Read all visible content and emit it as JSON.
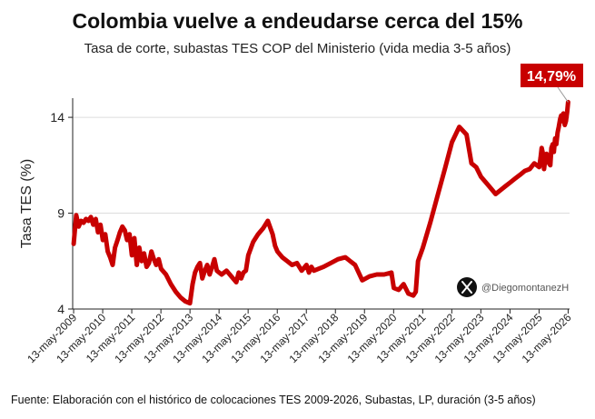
{
  "chart_data": {
    "type": "line",
    "title": "Colombia vuelve a endeudarse cerca del 15%",
    "subtitle": "Tasa de corte, subastas TES COP del Ministerio (vida media 3-5 años)",
    "ylabel": "Tasa TES (%)",
    "xlabel": "",
    "ylim": [
      4,
      15
    ],
    "yticks": [
      4,
      9,
      14
    ],
    "xlim": [
      "2009-05-01",
      "2026-05-31"
    ],
    "xtick_labels": [
      "13-may-2009",
      "13-may-2010",
      "13-may-2011",
      "13-may-2012",
      "13-may-2013",
      "13-may-2014",
      "13-may-2015",
      "13-may-2016",
      "13-may-2017",
      "13-may-2018",
      "13-may-2019",
      "13-may-2020",
      "13-may-2021",
      "13-may-2022",
      "13-may-2023",
      "13-may-2024",
      "13-may-2025",
      "13-may-2026"
    ],
    "grid": "horizontal",
    "line_color": "#c80000",
    "last_value_label": "14,79%",
    "watermark_handle": "@DiegomontanezH",
    "series": [
      {
        "x": [
          "2009-05-13",
          "2009-06-15",
          "2009-07-15",
          "2009-08-15",
          "2009-09-15",
          "2009-10-15",
          "2009-11-15",
          "2009-12-15",
          "2010-01-15",
          "2010-02-15",
          "2010-03-15",
          "2010-04-15",
          "2010-05-15",
          "2010-06-15",
          "2010-07-15",
          "2010-08-15",
          "2010-09-15",
          "2010-10-15",
          "2010-11-15",
          "2010-12-15",
          "2011-01-15",
          "2011-02-15",
          "2011-03-15",
          "2011-04-15",
          "2011-05-15",
          "2011-06-15",
          "2011-07-15",
          "2011-08-15",
          "2011-09-15",
          "2011-10-15",
          "2011-11-15",
          "2011-12-15",
          "2012-01-15",
          "2012-02-15",
          "2012-03-15",
          "2012-04-15",
          "2012-05-15",
          "2012-07-15",
          "2012-09-15",
          "2012-11-15",
          "2013-01-15",
          "2013-03-15",
          "2013-05-13",
          "2013-06-15",
          "2013-07-15",
          "2013-08-15",
          "2013-09-15",
          "2013-10-15",
          "2013-11-15",
          "2013-12-15",
          "2014-01-15",
          "2014-02-15",
          "2014-03-15",
          "2014-04-15",
          "2014-05-15",
          "2014-06-15",
          "2014-07-15",
          "2014-08-15",
          "2014-10-15",
          "2014-12-15",
          "2015-01-15",
          "2015-02-15",
          "2015-03-15",
          "2015-04-15",
          "2015-05-15",
          "2015-07-15",
          "2015-09-15",
          "2015-11-15",
          "2016-01-15",
          "2016-03-15",
          "2016-04-15",
          "2016-05-15",
          "2016-07-15",
          "2016-09-15",
          "2016-11-15",
          "2017-01-15",
          "2017-03-15",
          "2017-05-15",
          "2017-06-15",
          "2017-07-15",
          "2017-08-15",
          "2017-10-15",
          "2017-12-15",
          "2018-03-15",
          "2018-06-15",
          "2018-09-15",
          "2018-11-15",
          "2019-01-15",
          "2019-04-15",
          "2019-07-15",
          "2019-10-15",
          "2020-01-15",
          "2020-04-15",
          "2020-05-15",
          "2020-07-15",
          "2020-09-15",
          "2020-11-15",
          "2021-01-15",
          "2021-02-15",
          "2021-03-15",
          "2021-05-15",
          "2021-08-15",
          "2021-11-15",
          "2022-02-15",
          "2022-05-15",
          "2022-08-15",
          "2022-11-15",
          "2023-01-15",
          "2023-03-15",
          "2023-05-15",
          "2023-07-15",
          "2023-09-15",
          "2023-11-15",
          "2024-01-15",
          "2024-03-15",
          "2024-05-15",
          "2024-07-15",
          "2024-09-15",
          "2024-11-15",
          "2025-01-15",
          "2025-03-15",
          "2025-05-15",
          "2025-06-01",
          "2025-06-15",
          "2025-07-01",
          "2025-07-15",
          "2025-08-01",
          "2025-08-15",
          "2025-09-01",
          "2025-09-15",
          "2025-10-01",
          "2025-10-15",
          "2025-11-01",
          "2025-11-15",
          "2025-12-01",
          "2025-12-15",
          "2026-01-01",
          "2026-01-15",
          "2026-02-01",
          "2026-02-15",
          "2026-03-01",
          "2026-03-15",
          "2026-04-01",
          "2026-04-15",
          "2026-05-01",
          "2026-05-13"
        ],
        "values": [
          7.4,
          8.9,
          8.3,
          8.6,
          8.5,
          8.7,
          8.6,
          8.8,
          8.4,
          8.7,
          8.0,
          8.4,
          7.6,
          7.9,
          7.0,
          6.7,
          6.3,
          7.2,
          7.6,
          8.0,
          8.3,
          8.1,
          7.6,
          7.9,
          6.8,
          7.7,
          6.3,
          7.2,
          6.5,
          6.9,
          6.2,
          6.4,
          7.0,
          6.6,
          6.3,
          6.6,
          6.1,
          5.8,
          5.3,
          4.9,
          4.6,
          4.4,
          4.3,
          5.3,
          5.9,
          6.2,
          6.4,
          5.6,
          6.0,
          6.3,
          5.8,
          6.2,
          6.6,
          6.0,
          5.9,
          5.8,
          5.9,
          6.0,
          5.7,
          5.4,
          5.9,
          5.6,
          5.9,
          6.0,
          6.8,
          7.5,
          7.9,
          8.2,
          8.6,
          7.9,
          7.3,
          7.0,
          6.7,
          6.5,
          6.3,
          6.4,
          6.0,
          6.3,
          5.9,
          6.2,
          6.0,
          6.1,
          6.2,
          6.4,
          6.6,
          6.7,
          6.5,
          6.3,
          5.5,
          5.7,
          5.8,
          5.8,
          5.9,
          5.1,
          5.0,
          5.3,
          4.8,
          4.7,
          4.9,
          6.5,
          7.2,
          8.5,
          9.9,
          11.3,
          12.7,
          13.5,
          13.1,
          11.6,
          11.4,
          10.9,
          10.6,
          10.3,
          10.0,
          10.2,
          10.4,
          10.6,
          10.8,
          11.0,
          11.2,
          11.3,
          11.6,
          11.4,
          11.9,
          12.4,
          12.1,
          11.3,
          11.9,
          12.1,
          11.9,
          11.6,
          11.5,
          12.4,
          12.6,
          12.2,
          12.9,
          12.6,
          13.2,
          13.5,
          13.9,
          14.1,
          13.8,
          14.2,
          13.6,
          13.8,
          14.3,
          14.79
        ]
      }
    ]
  },
  "footer": "Fuente: Elaboración con el histórico de colocaciones TES 2009-2026, Subastas, LP, duración (3-5 años)"
}
